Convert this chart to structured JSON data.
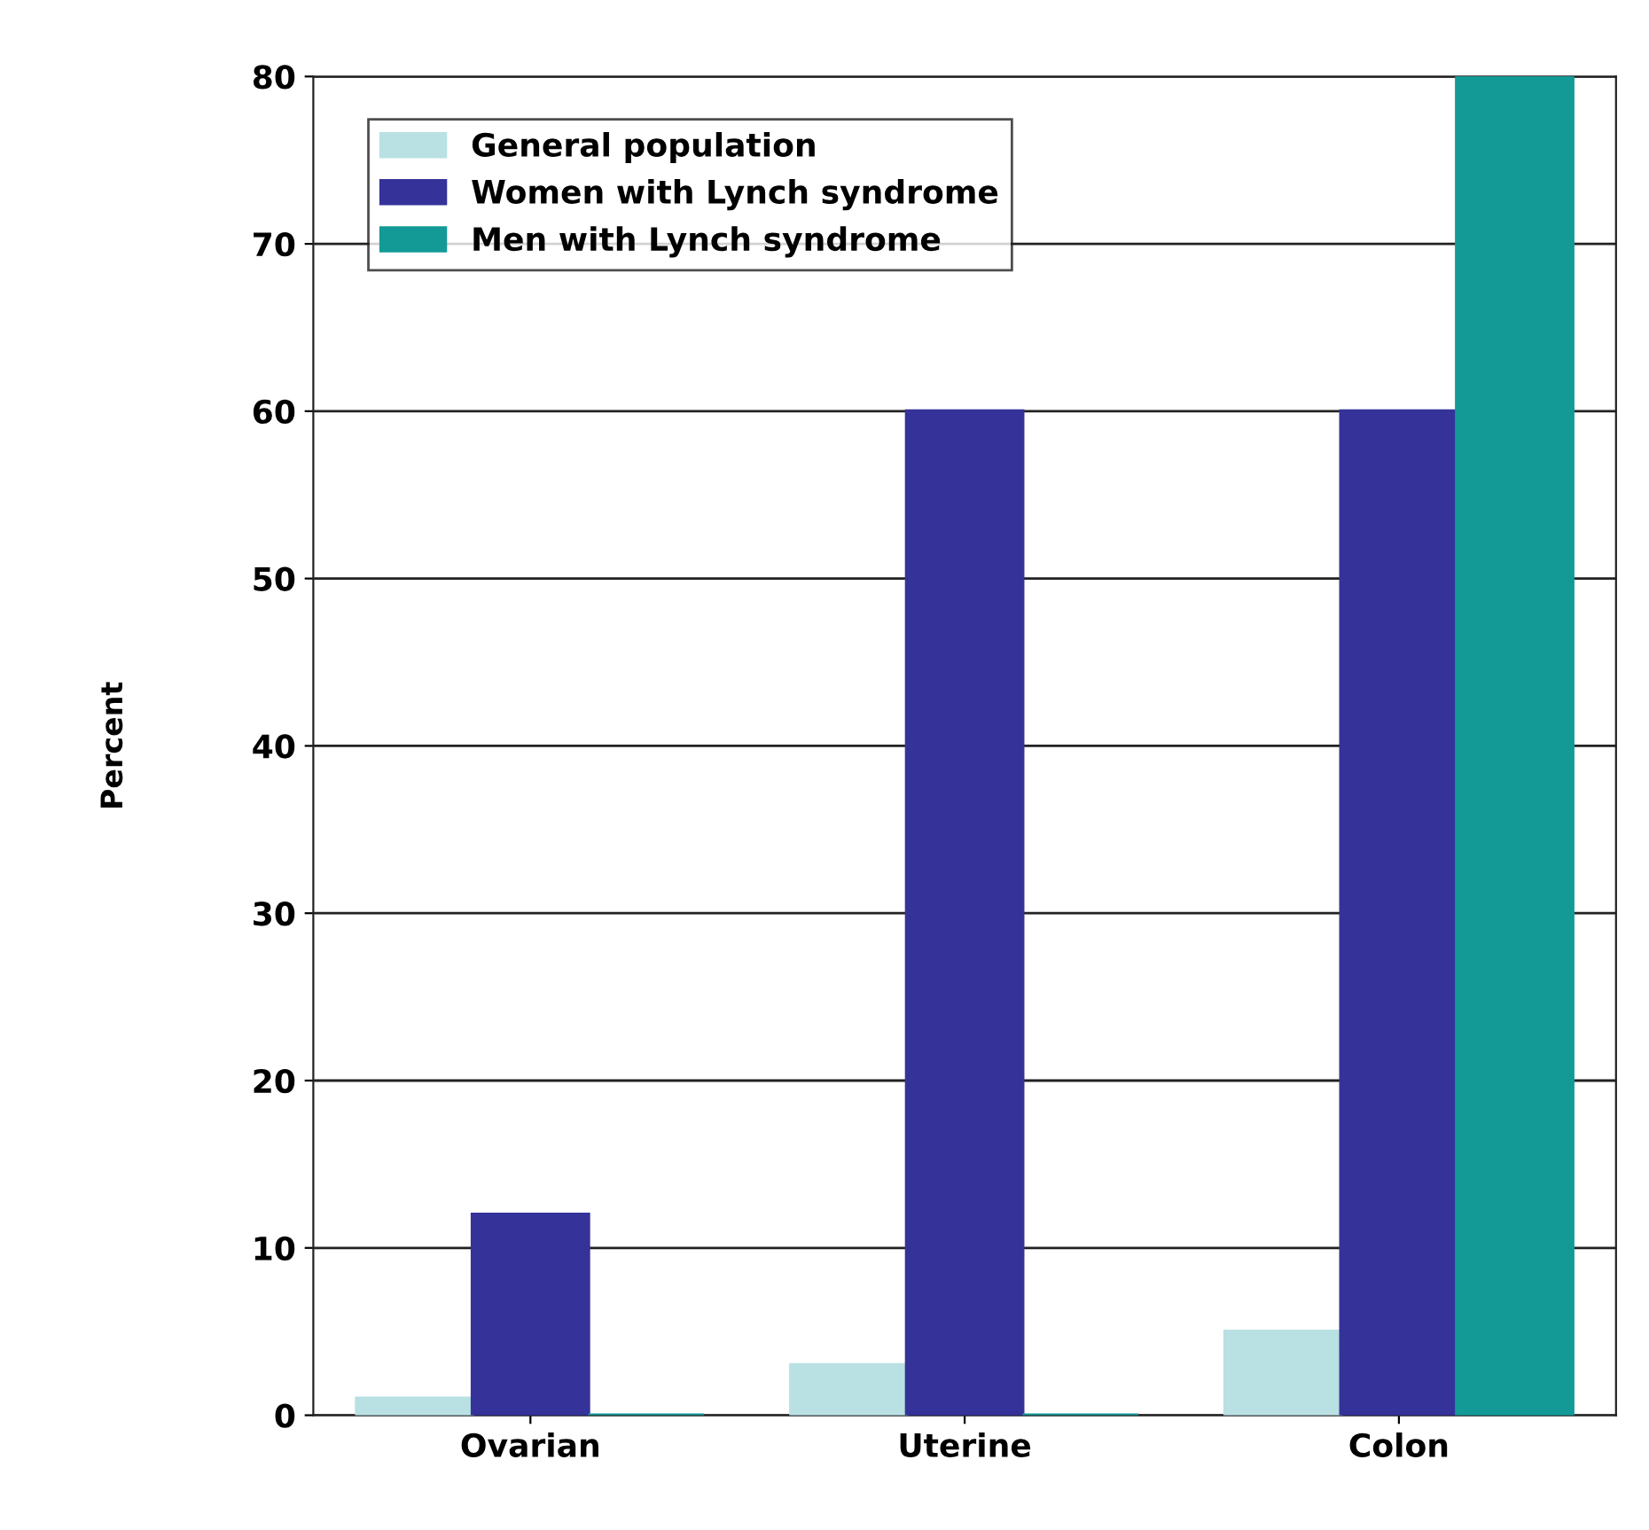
{
  "chart_data": {
    "type": "bar",
    "ylabel": "Percent",
    "categories": [
      "Ovarian",
      "Uterine",
      "Colon"
    ],
    "series": [
      {
        "name": "General population",
        "color": "#b9e0e3",
        "values": [
          1,
          3,
          5
        ]
      },
      {
        "name": "Women with Lynch syndrome",
        "color": "#353399",
        "values": [
          12,
          60,
          60
        ]
      },
      {
        "name": "Men with Lynch syndrome",
        "color": "#139a97",
        "values": [
          0,
          0,
          80
        ]
      }
    ],
    "ylim": [
      0,
      80
    ],
    "yticks": [
      0,
      10,
      20,
      30,
      40,
      50,
      60,
      70,
      80
    ],
    "grid": "y",
    "legend": "top left"
  }
}
